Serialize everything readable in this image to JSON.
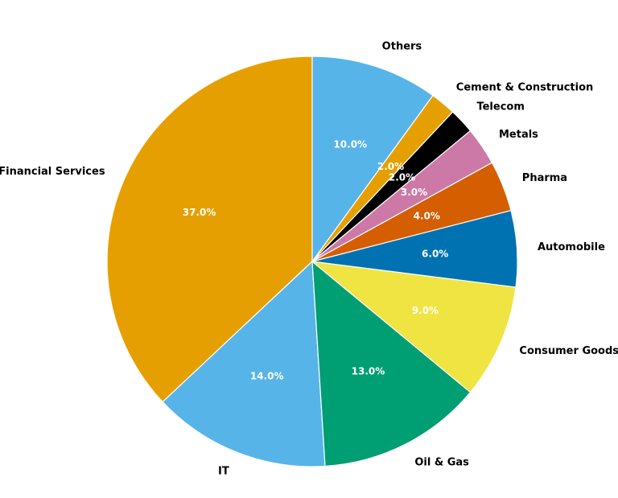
{
  "chart_data": {
    "type": "pie",
    "categories": [
      "Financial Services",
      "IT",
      "Oil & Gas",
      "Consumer Goods",
      "Automobile",
      "Pharma",
      "Metals",
      "Telecom",
      "Cement & Construction",
      "Others"
    ],
    "values": [
      37,
      14,
      13,
      9,
      6,
      4,
      3,
      2,
      2,
      10
    ],
    "value_labels": [
      "37.0%",
      "14.0%",
      "13.0%",
      "9.0%",
      "6.0%",
      "4.0%",
      "3.0%",
      "2.0%",
      "2.0%",
      "10.0%"
    ],
    "colors": [
      "#E69F00",
      "#56B4E9",
      "#009E73",
      "#F0E442",
      "#0072B2",
      "#D55E00",
      "#CC79A7",
      "#000000",
      "#E69F00",
      "#56B4E9"
    ],
    "start_angle_deg": 90,
    "direction": "counterclockwise",
    "title": ""
  }
}
